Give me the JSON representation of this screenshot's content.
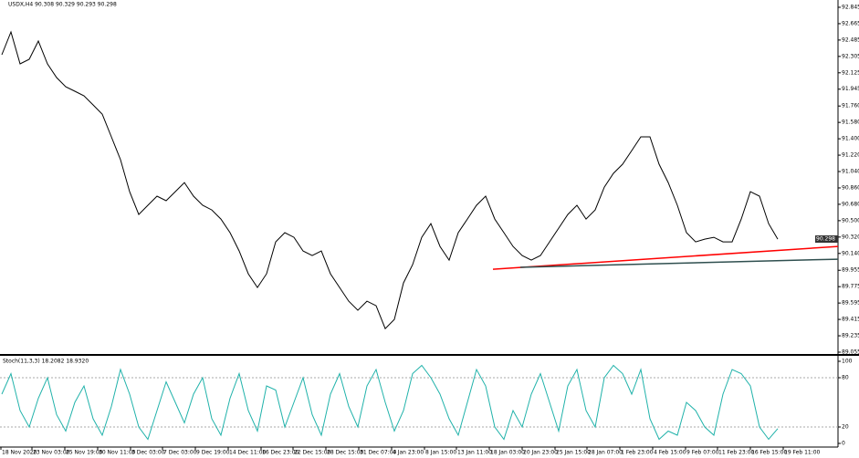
{
  "chart_data": [
    {
      "type": "line",
      "title": "USDX,H4 90.308 90.329 90.293 90.298",
      "xlim": [
        0,
        91.8
      ],
      "ylim": [
        89.035,
        92.925
      ],
      "yticks": [
        92.845,
        92.665,
        92.485,
        92.305,
        92.125,
        91.945,
        {
          "value": 91.76,
          "label": "91.760"
        },
        {
          "value": 91.58,
          "label": "91.580"
        },
        {
          "value": 91.4,
          "label": "91.400"
        },
        {
          "value": 91.22,
          "label": "91.220"
        },
        {
          "value": 91.04,
          "label": "91.040"
        },
        {
          "value": 90.86,
          "label": "90.860"
        },
        {
          "value": 90.68,
          "label": "90.680"
        },
        {
          "value": 90.5,
          "label": "90.500"
        },
        {
          "value": 90.32,
          "label": "90.320"
        },
        {
          "value": 90.14,
          "label": "90.140"
        },
        89.955,
        89.775,
        89.595,
        89.415,
        89.235,
        89.055
      ],
      "current_price": 90.298,
      "series": [
        {
          "color": "#000000",
          "values": [
            92.323,
            92.574,
            92.223,
            92.273,
            92.474,
            92.223,
            92.073,
            91.972,
            91.922,
            91.872,
            91.772,
            91.671,
            91.421,
            91.17,
            90.819,
            90.568,
            90.669,
            90.769,
            90.719,
            90.819,
            90.919,
            90.769,
            90.669,
            90.618,
            90.518,
            90.368,
            90.167,
            89.916,
            89.766,
            89.916,
            90.267,
            90.368,
            90.317,
            90.167,
            90.117,
            90.167,
            89.916,
            89.766,
            89.615,
            89.515,
            89.615,
            89.565,
            89.314,
            89.415,
            89.816,
            90.017,
            90.317,
            90.468,
            90.217,
            90.067,
            90.368,
            90.518,
            90.669,
            90.769,
            90.518,
            90.368,
            90.217,
            90.117,
            90.067,
            90.117,
            90.267,
            90.418,
            90.568,
            90.669,
            90.518,
            90.618,
            90.869,
            91.02,
            91.12,
            91.27,
            91.421,
            91.421,
            91.12,
            90.919,
            90.669,
            90.368,
            90.267,
            90.297,
            90.317,
            90.267,
            90.267,
            90.518,
            90.819,
            90.769,
            90.468,
            90.297
          ]
        }
      ],
      "lines": [
        {
          "color": "#ff0000",
          "x": [
            54,
            91.8
          ],
          "values": [
            89.966,
            90.217
          ]
        },
        {
          "color": "#2f4f4f",
          "x": [
            57,
            91.8
          ],
          "values": [
            89.988,
            90.077
          ]
        }
      ]
    },
    {
      "type": "line",
      "title": "Stoch(11,3,3) 18.2082 18.9320",
      "xlim": [
        0,
        91.8
      ],
      "ylim": [
        0,
        100
      ],
      "yticks": [
        100,
        80,
        20,
        0
      ],
      "levels": [
        80,
        20
      ],
      "xticks": [
        {
          "value": 0,
          "label": "18 Nov 2020"
        },
        {
          "value": 3.4,
          "label": "23 Nov 03:00"
        },
        {
          "value": 7,
          "label": "25 Nov 19:00"
        },
        {
          "value": 10.6,
          "label": "30 Nov 11:00"
        },
        {
          "value": 14.2,
          "label": "3 Dec 03:00"
        },
        {
          "value": 17.7,
          "label": "7 Dec 03:00"
        },
        {
          "value": 21.3,
          "label": "9 Dec 19:00"
        },
        {
          "value": 24.9,
          "label": "14 Dec 11:00"
        },
        {
          "value": 28.5,
          "label": "16 Dec 23:00"
        },
        {
          "value": 32,
          "label": "22 Dec 15:00"
        },
        {
          "value": 35.6,
          "label": "28 Dec 15:00"
        },
        {
          "value": 39.2,
          "label": "31 Dec 07:00"
        },
        {
          "value": 42.8,
          "label": "4 Jan 23:00"
        },
        {
          "value": 46.4,
          "label": "8 Jan 15:00"
        },
        {
          "value": 49.9,
          "label": "13 Jan 11:00"
        },
        {
          "value": 53.5,
          "label": "18 Jan 03:00"
        },
        {
          "value": 57.1,
          "label": "20 Jan 23:00"
        },
        {
          "value": 60.7,
          "label": "25 Jan 15:00"
        },
        {
          "value": 64.2,
          "label": "28 Jan 07:00"
        },
        {
          "value": 67.8,
          "label": "1 Feb 23:00"
        },
        {
          "value": 71.4,
          "label": "4 Feb 15:00"
        },
        {
          "value": 75,
          "label": "9 Feb 07:00"
        },
        {
          "value": 78.5,
          "label": "11 Feb 23:00"
        },
        {
          "value": 82.1,
          "label": "16 Feb 15:00"
        },
        {
          "value": 85.7,
          "label": "19 Feb 11:00"
        }
      ],
      "series": [
        {
          "color": "#20b2aa",
          "values": [
            60,
            85,
            40,
            20,
            55,
            80,
            35,
            15,
            50,
            70,
            30,
            10,
            45,
            90,
            60,
            20,
            5,
            40,
            75,
            50,
            25,
            60,
            80,
            30,
            10,
            55,
            85,
            40,
            15,
            70,
            65,
            20,
            50,
            80,
            35,
            10,
            60,
            85,
            45,
            20,
            70,
            90,
            50,
            15,
            40,
            85,
            95,
            80,
            60,
            30,
            10,
            50,
            90,
            70,
            20,
            5,
            40,
            20,
            60,
            85,
            50,
            15,
            70,
            90,
            40,
            20,
            80,
            95,
            85,
            60,
            90,
            30,
            5,
            15,
            10,
            50,
            40,
            20,
            10,
            60,
            90,
            85,
            70,
            20,
            5,
            18
          ]
        }
      ]
    }
  ]
}
